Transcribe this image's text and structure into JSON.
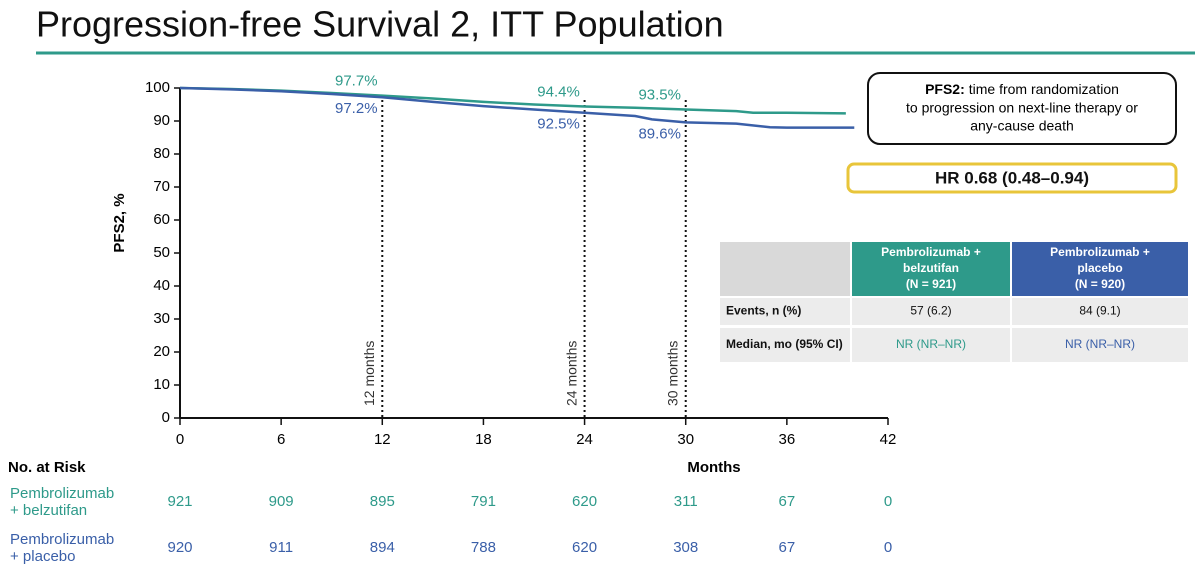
{
  "title": "Progression-free Survival 2, ITT Population",
  "chart_data": {
    "type": "line",
    "x_label": "Months",
    "y_label": "PFS2, %",
    "xlim": [
      0,
      42
    ],
    "ylim": [
      0,
      100
    ],
    "xticks": [
      0,
      6,
      12,
      18,
      24,
      30,
      36,
      42
    ],
    "yticks": [
      0,
      10,
      20,
      30,
      40,
      50,
      60,
      70,
      80,
      90,
      100
    ],
    "series": [
      {
        "color": "#2e9a8a",
        "x": [
          0,
          3,
          6,
          9,
          12,
          15,
          18,
          21,
          24,
          27,
          30,
          33,
          34,
          36,
          39.5
        ],
        "values": [
          100,
          99.7,
          99.2,
          98.5,
          97.7,
          96.8,
          95.8,
          95,
          94.4,
          94,
          93.5,
          93,
          92.5,
          92.5,
          92.3
        ]
      },
      {
        "color": "#3a5fa8",
        "x": [
          0,
          3,
          6,
          9,
          12,
          15,
          18,
          21,
          24,
          27,
          28,
          30,
          33,
          35,
          36,
          40
        ],
        "values": [
          100,
          99.6,
          99,
          98.2,
          97.2,
          95.8,
          94.5,
          93.5,
          92.5,
          91.5,
          90.5,
          89.6,
          89.2,
          88.1,
          88,
          88
        ]
      }
    ],
    "annotations": [
      {
        "text": "97.7%",
        "x": 12,
        "y": 97.7,
        "color": "#2e9a8a",
        "position": "above"
      },
      {
        "text": "94.4%",
        "x": 24,
        "y": 94.4,
        "color": "#2e9a8a",
        "position": "above"
      },
      {
        "text": "93.5%",
        "x": 30,
        "y": 93.5,
        "color": "#2e9a8a",
        "position": "above"
      },
      {
        "text": "97.2%",
        "x": 12,
        "y": 97.2,
        "color": "#3a5fa8",
        "position": "below"
      },
      {
        "text": "92.5%",
        "x": 24,
        "y": 92.5,
        "color": "#3a5fa8",
        "position": "below"
      },
      {
        "text": "89.6%",
        "x": 30,
        "y": 89.6,
        "color": "#3a5fa8",
        "position": "below"
      }
    ],
    "reference_lines": [
      {
        "x": 12,
        "label": "12 months"
      },
      {
        "x": 24,
        "label": "24 months"
      },
      {
        "x": 30,
        "label": "30 months"
      }
    ]
  },
  "risk_table": {
    "title": "No. at Risk",
    "rows": [
      {
        "name": [
          "Pembrolizumab",
          "+ belzutifan"
        ],
        "color": "#2e9a8a",
        "counts": [
          921,
          909,
          895,
          791,
          620,
          311,
          67,
          0
        ]
      },
      {
        "name": [
          "Pembrolizumab",
          "+ placebo"
        ],
        "color": "#3a5fa8",
        "counts": [
          920,
          911,
          894,
          788,
          620,
          308,
          67,
          0
        ]
      }
    ]
  },
  "definition_box": {
    "label": "PFS2:",
    "lines": [
      "time from randomization",
      "to progression on next-line therapy or",
      "any-cause death"
    ]
  },
  "hazard_ratio": "HR 0.68 (0.48–0.94)",
  "summary_table": {
    "header": [
      [
        "Pembrolizumab +",
        "belzutifan",
        "(N = 921)"
      ],
      [
        "Pembrolizumab +",
        "placebo",
        "(N = 920)"
      ]
    ],
    "rows": [
      [
        "Events, n (%)",
        "57 (6.2)",
        "84 (9.1)"
      ],
      [
        "Median, mo (95% CI)",
        "NR (NR–NR)",
        "NR (NR–NR)"
      ]
    ]
  }
}
